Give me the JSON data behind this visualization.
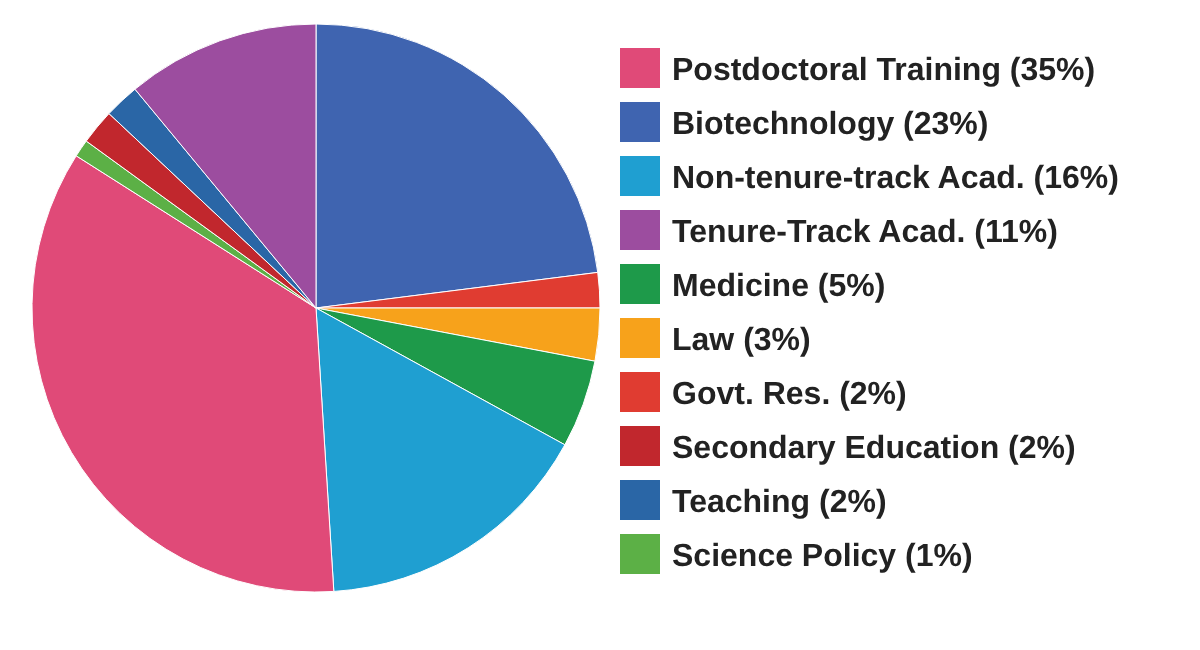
{
  "chart_data": {
    "type": "pie",
    "legend": "right",
    "categories": [
      "Biotechnology (23%)",
      "Govt. Res. (2%)",
      "Law (3%)",
      "Medicine (5%)",
      "Non-tenure-track Acad. (16%)",
      "Postdoctoral Training (35%)",
      "Science Policy (1%)",
      "Secondary Education (2%)",
      "Teaching (2%)",
      "Tenure-Track Acad. (11%)"
    ],
    "values": [
      23,
      2,
      3,
      5,
      16,
      35,
      1,
      2,
      2,
      11
    ],
    "colors": [
      "#3f64b0",
      "#e03c31",
      "#f7a21b",
      "#1e9a4a",
      "#1f9fd1",
      "#e04a78",
      "#5cb046",
      "#c1272d",
      "#2a66a6",
      "#9c4d9f"
    ]
  }
}
